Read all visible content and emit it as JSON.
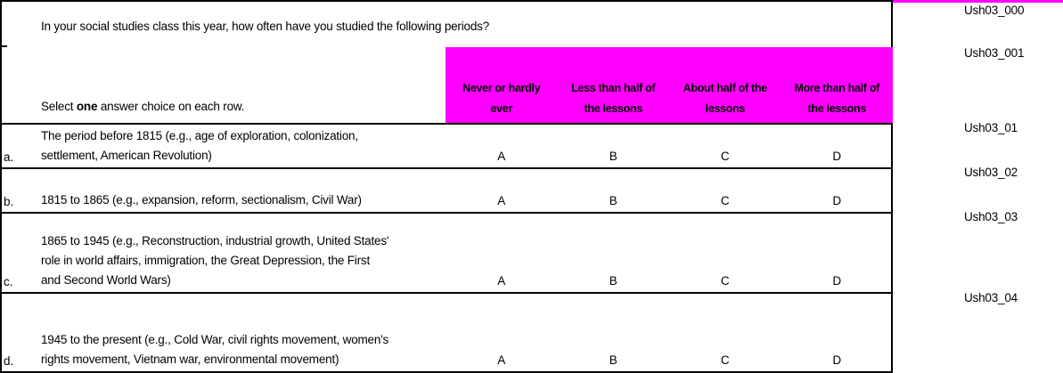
{
  "colors": {
    "answer_header_bg": "#FF00FF",
    "top_strip": "#FF00FF",
    "border": "#000000"
  },
  "question": "In your social studies class this year, how often have you studied the following periods?",
  "instruction": {
    "prefix": "Select ",
    "bold": "one",
    "suffix": " answer choice on each row."
  },
  "answer_columns": [
    {
      "line1": "Never or hardly",
      "line2": "ever"
    },
    {
      "line1": "Less than half of",
      "line2": "the lessons"
    },
    {
      "line1": "About half of the",
      "line2": "lessons"
    },
    {
      "line1": "More than half of",
      "line2": "the lessons"
    }
  ],
  "rows": [
    {
      "label": "a.",
      "lines": [
        "The period before 1815 (e.g., age of exploration, colonization,",
        "settlement, American Revolution)"
      ],
      "options": [
        "A",
        "B",
        "C",
        "D"
      ]
    },
    {
      "label": "b.",
      "lines": [
        "1815 to 1865 (e.g., expansion, reform, sectionalism, Civil War)"
      ],
      "options": [
        "A",
        "B",
        "C",
        "D"
      ]
    },
    {
      "label": "c.",
      "lines": [
        "1865 to 1945 (e.g., Reconstruction, industrial growth, United States'",
        "role in world affairs, immigration, the Great Depression, the First",
        "and Second World Wars)"
      ],
      "options": [
        "A",
        "B",
        "C",
        "D"
      ]
    },
    {
      "label": "d.",
      "lines": [
        "1945 to the present (e.g., Cold War, civil rights movement, women's",
        "rights movement, Vietnam war, environmental movement)"
      ],
      "options": [
        "A",
        "B",
        "C",
        "D"
      ]
    }
  ],
  "codes": [
    "Ush03_000",
    "Ush03_001",
    "Ush03_01",
    "Ush03_02",
    "Ush03_03",
    "Ush03_04"
  ]
}
